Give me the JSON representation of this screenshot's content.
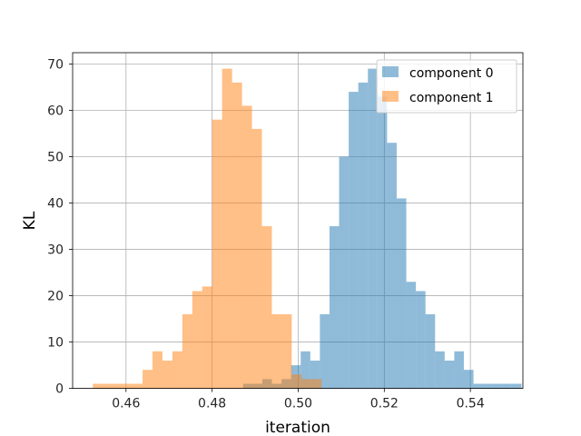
{
  "chart_data": {
    "type": "bar",
    "xlabel": "iteration",
    "ylabel": "KL",
    "xlim": [
      0.4476,
      0.5522
    ],
    "ylim": [
      0,
      72.45
    ],
    "xticks": [
      "0.46",
      "0.48",
      "0.50",
      "0.52",
      "0.54"
    ],
    "yticks": [
      "0",
      "10",
      "20",
      "30",
      "40",
      "50",
      "60",
      "70"
    ],
    "grid": true,
    "legend_position": "top-right",
    "bar_alpha": 0.5,
    "series": [
      {
        "name": "component 0",
        "color": "#1f77b4",
        "bin_start": 0.4872,
        "bin_width": 0.00223,
        "values": [
          1,
          1,
          2,
          1,
          2,
          5,
          8,
          6,
          16,
          35,
          50,
          64,
          66,
          69,
          63,
          53,
          41,
          23,
          21,
          16,
          8,
          6,
          8,
          4,
          1,
          1,
          1,
          1,
          1
        ]
      },
      {
        "name": "component 1",
        "color": "#ff7f0e",
        "bin_start": 0.4523,
        "bin_width": 0.00231,
        "values": [
          1,
          1,
          1,
          1,
          1,
          4,
          8,
          6,
          8,
          16,
          21,
          22,
          58,
          69,
          66,
          61,
          56,
          35,
          16,
          16,
          3,
          2,
          2
        ]
      }
    ]
  }
}
